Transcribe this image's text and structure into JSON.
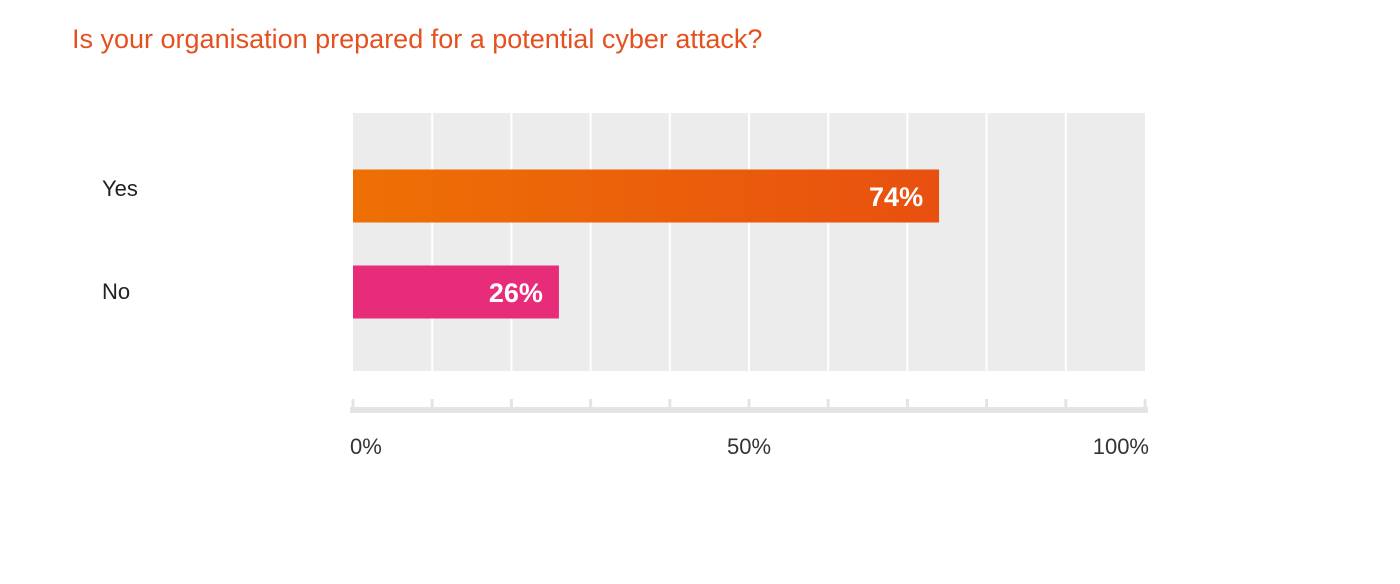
{
  "chart_data": {
    "type": "bar",
    "orientation": "horizontal",
    "title": "Is your organisation prepared for a potential cyber attack?",
    "categories": [
      "Yes",
      "No"
    ],
    "values": [
      74,
      26
    ],
    "value_labels": [
      "74%",
      "26%"
    ],
    "xlim": [
      0,
      100
    ],
    "ticks": [
      "0%",
      "50%",
      "100%"
    ],
    "tick_values": [
      0,
      50,
      100
    ],
    "grid": true,
    "colors": {
      "title": "#e5501f",
      "yes_gradient_start": "#ee7005",
      "yes_gradient_end": "#e8500f",
      "no": "#e72d7a",
      "plot_background": "#ececec",
      "gridline": "#ffffff"
    }
  }
}
